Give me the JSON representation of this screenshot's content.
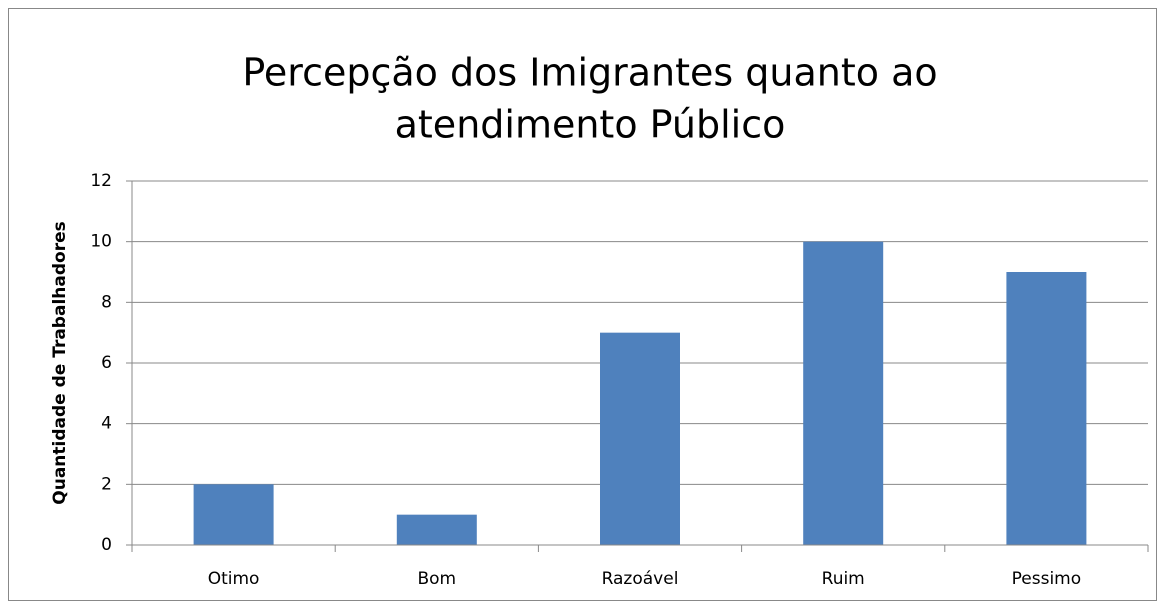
{
  "chart_data": {
    "type": "bar",
    "title": [
      "Percepção dos Imigrantes quanto ao",
      "atendimento Público"
    ],
    "y_label": "Quantidade de Trabalhadores",
    "categories": [
      "Otimo",
      "Bom",
      "Razoável",
      "Ruim",
      "Pessimo"
    ],
    "values": [
      2,
      1,
      7,
      10,
      9
    ],
    "color": "#4f81bd",
    "ylim": [
      0,
      12
    ],
    "yticks": [
      0,
      2,
      4,
      6,
      8,
      10,
      12
    ],
    "grid": true
  }
}
